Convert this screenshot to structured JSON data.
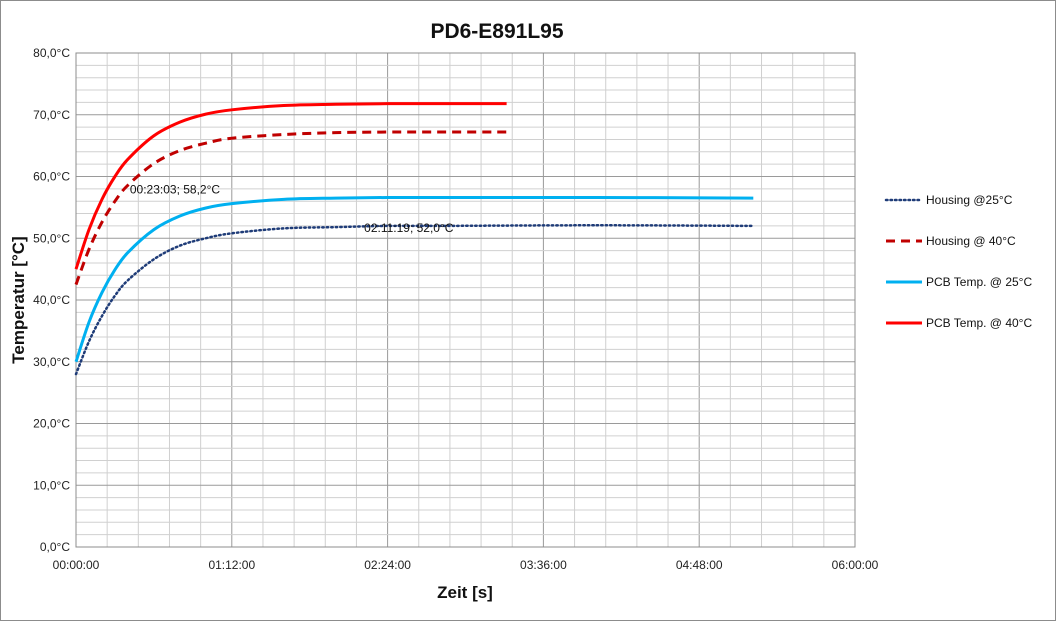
{
  "chart_data": {
    "type": "line",
    "title": "PD6-E891L95",
    "xlabel": "Zeit [s]",
    "ylabel": "Temperatur [°C]",
    "xlim": [
      "00:00:00",
      "06:00:00"
    ],
    "ylim": [
      0,
      80
    ],
    "grid": true,
    "legend": "right",
    "x_ticks": [
      "00:00:00",
      "01:12:00",
      "02:24:00",
      "03:36:00",
      "04:48:00",
      "06:00:00"
    ],
    "y_ticks": [
      "0,0°C",
      "10,0°C",
      "20,0°C",
      "30,0°C",
      "40,0°C",
      "50,0°C",
      "60,0°C",
      "70,0°C",
      "80,0°C"
    ],
    "series": [
      {
        "name": "Housing  @25°C",
        "color": "#1f3c78",
        "style": "dotted",
        "x": [
          "00:00:00",
          "00:06:00",
          "00:12:00",
          "00:18:00",
          "00:24:00",
          "00:36:00",
          "00:48:00",
          "01:00:00",
          "01:12:00",
          "01:36:00",
          "02:00:00",
          "02:24:00",
          "02:48:00",
          "04:00:00",
          "05:13:00"
        ],
        "y": [
          28,
          33.3,
          37.4,
          40.7,
          43.2,
          46.6,
          48.8,
          50.0,
          50.8,
          51.6,
          51.8,
          52.0,
          52.0,
          52.1,
          52.0
        ]
      },
      {
        "name": "Housing @ 40°C",
        "color": "#c00000",
        "style": "dashed",
        "x": [
          "00:00:00",
          "00:06:00",
          "00:12:00",
          "00:18:00",
          "00:24:00",
          "00:36:00",
          "00:48:00",
          "01:00:00",
          "01:12:00",
          "01:36:00",
          "02:00:00",
          "02:24:00",
          "02:48:00",
          "03:19:00"
        ],
        "y": [
          42.5,
          48.2,
          52.6,
          56.0,
          58.6,
          62.1,
          64.2,
          65.4,
          66.2,
          66.8,
          67.1,
          67.2,
          67.2,
          67.2
        ]
      },
      {
        "name": "PCB Temp. @ 25°C",
        "color": "#00b0f0",
        "style": "solid",
        "x": [
          "00:00:00",
          "00:06:00",
          "00:12:00",
          "00:18:00",
          "00:24:00",
          "00:36:00",
          "00:48:00",
          "01:00:00",
          "01:12:00",
          "01:36:00",
          "02:00:00",
          "02:24:00",
          "02:48:00",
          "04:00:00",
          "05:13:00"
        ],
        "y": [
          30,
          36.4,
          41.2,
          44.9,
          47.7,
          51.4,
          53.6,
          54.9,
          55.6,
          56.3,
          56.5,
          56.6,
          56.6,
          56.6,
          56.5
        ]
      },
      {
        "name": "PCB Temp. @ 40°C",
        "color": "#ff0000",
        "style": "solid",
        "x": [
          "00:00:00",
          "00:06:00",
          "00:12:00",
          "00:18:00",
          "00:24:00",
          "00:36:00",
          "00:48:00",
          "01:00:00",
          "01:12:00",
          "01:36:00",
          "02:00:00",
          "02:24:00",
          "02:48:00",
          "03:19:00"
        ],
        "y": [
          45,
          51.4,
          56.3,
          60.0,
          62.8,
          66.6,
          68.8,
          70.1,
          70.8,
          71.5,
          71.7,
          71.8,
          71.8,
          71.8
        ]
      }
    ],
    "annotations": [
      {
        "text": "00:23:03; 58,2°C",
        "x": "00:23:03",
        "y": 58.2
      },
      {
        "text": "02:11:19; 52,0°C",
        "x": "02:11:19",
        "y": 52.0
      }
    ]
  }
}
